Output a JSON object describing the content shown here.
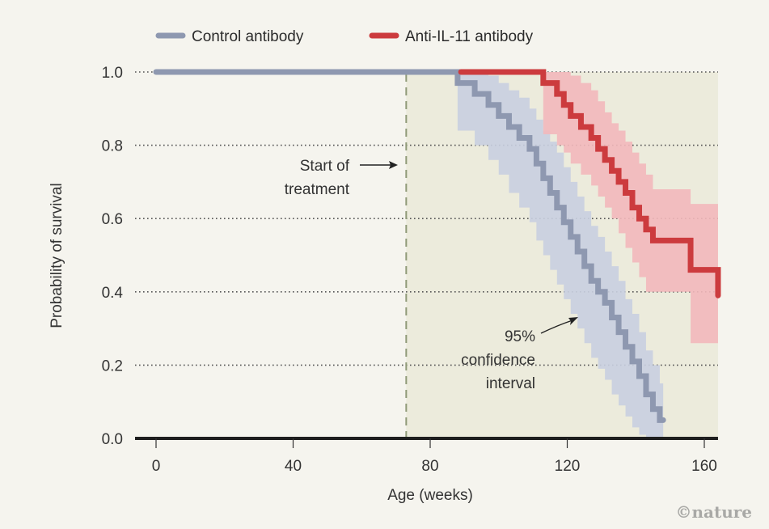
{
  "chart_data": {
    "type": "line",
    "subtype": "kaplan-meier-step",
    "title": "",
    "xlabel": "Age (weeks)",
    "ylabel": "Probability of survival",
    "xlim": [
      -6,
      164
    ],
    "ylim": [
      0,
      1
    ],
    "x_ticks": [
      0,
      40,
      80,
      120,
      160
    ],
    "x_tick_labels": [
      "0",
      "40",
      "80",
      "120",
      "160"
    ],
    "y_ticks": [
      0.0,
      0.2,
      0.4,
      0.6,
      0.8,
      1.0
    ],
    "y_tick_labels": [
      "0.0",
      "0.2",
      "0.4",
      "0.6",
      "0.8",
      "1.0"
    ],
    "grid": "horizontal dotted",
    "legend_position": "top",
    "treatment_region": {
      "start": 73,
      "end": 164,
      "color": "#ecebdc"
    },
    "treatment_line_x": 73,
    "series": [
      {
        "name": "Control antibody",
        "color": "#8e98b0",
        "ci_color": "#c9cfe0",
        "x": [
          0,
          88,
          93,
          97,
          100,
          103,
          106,
          109,
          111,
          113,
          115,
          117,
          119,
          121,
          123,
          125,
          127,
          129,
          131,
          133,
          135,
          137,
          139,
          141,
          143,
          145,
          147
        ],
        "y": [
          1.0,
          0.97,
          0.94,
          0.91,
          0.88,
          0.85,
          0.82,
          0.79,
          0.75,
          0.71,
          0.67,
          0.63,
          0.59,
          0.55,
          0.51,
          0.47,
          0.43,
          0.4,
          0.37,
          0.33,
          0.29,
          0.25,
          0.21,
          0.17,
          0.12,
          0.08,
          0.05
        ],
        "x_end": 148,
        "ci_upper": [
          1.0,
          1.0,
          1.0,
          0.99,
          0.97,
          0.95,
          0.93,
          0.9,
          0.87,
          0.84,
          0.81,
          0.78,
          0.74,
          0.7,
          0.66,
          0.62,
          0.58,
          0.55,
          0.51,
          0.47,
          0.43,
          0.38,
          0.34,
          0.29,
          0.24,
          0.2,
          0.15
        ],
        "ci_lower": [
          1.0,
          0.84,
          0.8,
          0.76,
          0.72,
          0.67,
          0.63,
          0.59,
          0.54,
          0.5,
          0.46,
          0.42,
          0.38,
          0.34,
          0.3,
          0.26,
          0.22,
          0.19,
          0.16,
          0.12,
          0.09,
          0.06,
          0.03,
          0.01,
          0.0,
          0.0,
          0.0
        ]
      },
      {
        "name": "Anti-IL-11 antibody",
        "color": "#cc3b3e",
        "ci_color": "#f3b8bb",
        "x": [
          89,
          113,
          117,
          119,
          121,
          124,
          127,
          129,
          131,
          133,
          135,
          137,
          139,
          141,
          143,
          145,
          156,
          164
        ],
        "y": [
          1.0,
          0.97,
          0.94,
          0.91,
          0.88,
          0.85,
          0.82,
          0.79,
          0.76,
          0.73,
          0.7,
          0.67,
          0.63,
          0.6,
          0.57,
          0.54,
          0.46,
          0.39
        ],
        "x_end": 164,
        "ci_upper": [
          1.0,
          1.0,
          1.0,
          1.0,
          0.99,
          0.97,
          0.95,
          0.92,
          0.89,
          0.86,
          0.84,
          0.81,
          0.78,
          0.75,
          0.72,
          0.68,
          0.64,
          0.64
        ],
        "ci_lower": [
          1.0,
          0.83,
          0.8,
          0.78,
          0.75,
          0.72,
          0.69,
          0.66,
          0.63,
          0.6,
          0.56,
          0.52,
          0.48,
          0.44,
          0.4,
          0.4,
          0.26,
          0.18
        ]
      }
    ],
    "annotations": [
      {
        "lines": [
          "Start of",
          "treatment"
        ],
        "arrow_to": "treatment_line"
      },
      {
        "lines": [
          "95%",
          "confidence",
          "interval"
        ],
        "arrow_to": "control_ci"
      }
    ]
  },
  "legend": {
    "items": [
      {
        "label": "Control antibody",
        "color": "#8e98b0"
      },
      {
        "label": "Anti-IL-11 antibody",
        "color": "#cc3b3e"
      }
    ]
  },
  "credit": "©nature"
}
